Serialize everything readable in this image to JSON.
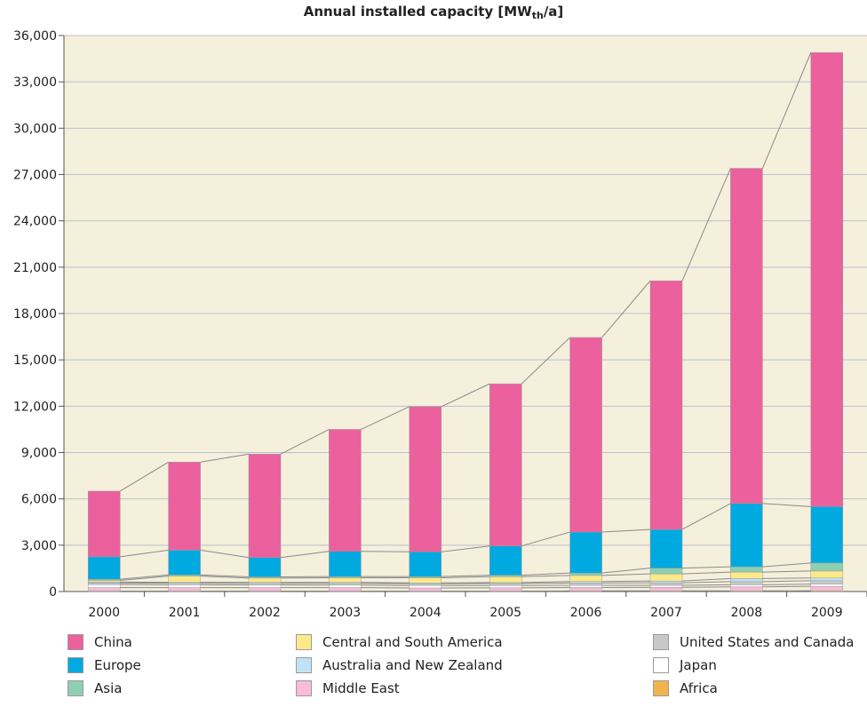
{
  "chart_data": {
    "type": "bar",
    "stacked": true,
    "title_text": "Annual installed capacity [MW",
    "title_sub": "th",
    "title_end": "/a]",
    "xlabel": "",
    "ylabel": "",
    "categories": [
      "2000",
      "2001",
      "2002",
      "2003",
      "2004",
      "2005",
      "2006",
      "2007",
      "2008",
      "2009"
    ],
    "ylim": [
      0,
      36000
    ],
    "yticks": [
      0,
      3000,
      6000,
      9000,
      12000,
      15000,
      18000,
      21000,
      24000,
      27000,
      30000,
      33000,
      36000
    ],
    "ytick_labels": [
      "0",
      "3,000",
      "6,000",
      "9,000",
      "12,000",
      "15,000",
      "18,000",
      "21,000",
      "24,000",
      "27,000",
      "30,000",
      "33,000",
      "36,000"
    ],
    "grid": true,
    "plot_background": "#f5f0dc",
    "connector_color": "#8a8a8a",
    "series": [
      {
        "name": "Africa",
        "color": "#f0b44a",
        "values": [
          30,
          30,
          30,
          30,
          30,
          30,
          40,
          40,
          40,
          50
        ]
      },
      {
        "name": "Middle East",
        "color": "#f7bcd6",
        "values": [
          220,
          220,
          220,
          220,
          200,
          210,
          220,
          230,
          260,
          290
        ]
      },
      {
        "name": "Japan",
        "color": "#ffffff",
        "values": [
          200,
          190,
          180,
          170,
          160,
          150,
          140,
          130,
          140,
          140
        ]
      },
      {
        "name": "United States and Canada",
        "color": "#c8c8c8",
        "values": [
          100,
          100,
          100,
          110,
          110,
          130,
          150,
          170,
          200,
          220
        ]
      },
      {
        "name": "Australia and New Zealand",
        "color": "#bfe3f5",
        "values": [
          60,
          60,
          60,
          60,
          60,
          60,
          100,
          110,
          200,
          180
        ]
      },
      {
        "name": "Central and South America",
        "color": "#fde98a",
        "values": [
          110,
          400,
          280,
          300,
          330,
          380,
          390,
          460,
          420,
          450
        ]
      },
      {
        "name": "Asia",
        "color": "#8ecfb2",
        "values": [
          80,
          80,
          80,
          80,
          80,
          100,
          160,
          380,
          340,
          520
        ]
      },
      {
        "name": "Europe",
        "color": "#00a9e0",
        "values": [
          1450,
          1600,
          1250,
          1630,
          1600,
          1890,
          2650,
          2500,
          4100,
          3650
        ]
      },
      {
        "name": "China",
        "color": "#ec609e",
        "values": [
          4250,
          5700,
          6700,
          7900,
          9400,
          10500,
          12600,
          16100,
          21700,
          29400
        ]
      }
    ],
    "legend": [
      {
        "label": "China",
        "color": "#ec609e"
      },
      {
        "label": "Europe",
        "color": "#00a9e0"
      },
      {
        "label": "Asia",
        "color": "#8ecfb2"
      },
      {
        "label": "Central and South America",
        "color": "#fde98a"
      },
      {
        "label": "Australia and New Zealand",
        "color": "#bfe3f5"
      },
      {
        "label": "Middle East",
        "color": "#f7bcd6"
      },
      {
        "label": "United States and Canada",
        "color": "#c8c8c8"
      },
      {
        "label": "Japan",
        "color": "#ffffff"
      },
      {
        "label": "Africa",
        "color": "#f0b44a"
      }
    ],
    "legend_placement": "bottom"
  }
}
